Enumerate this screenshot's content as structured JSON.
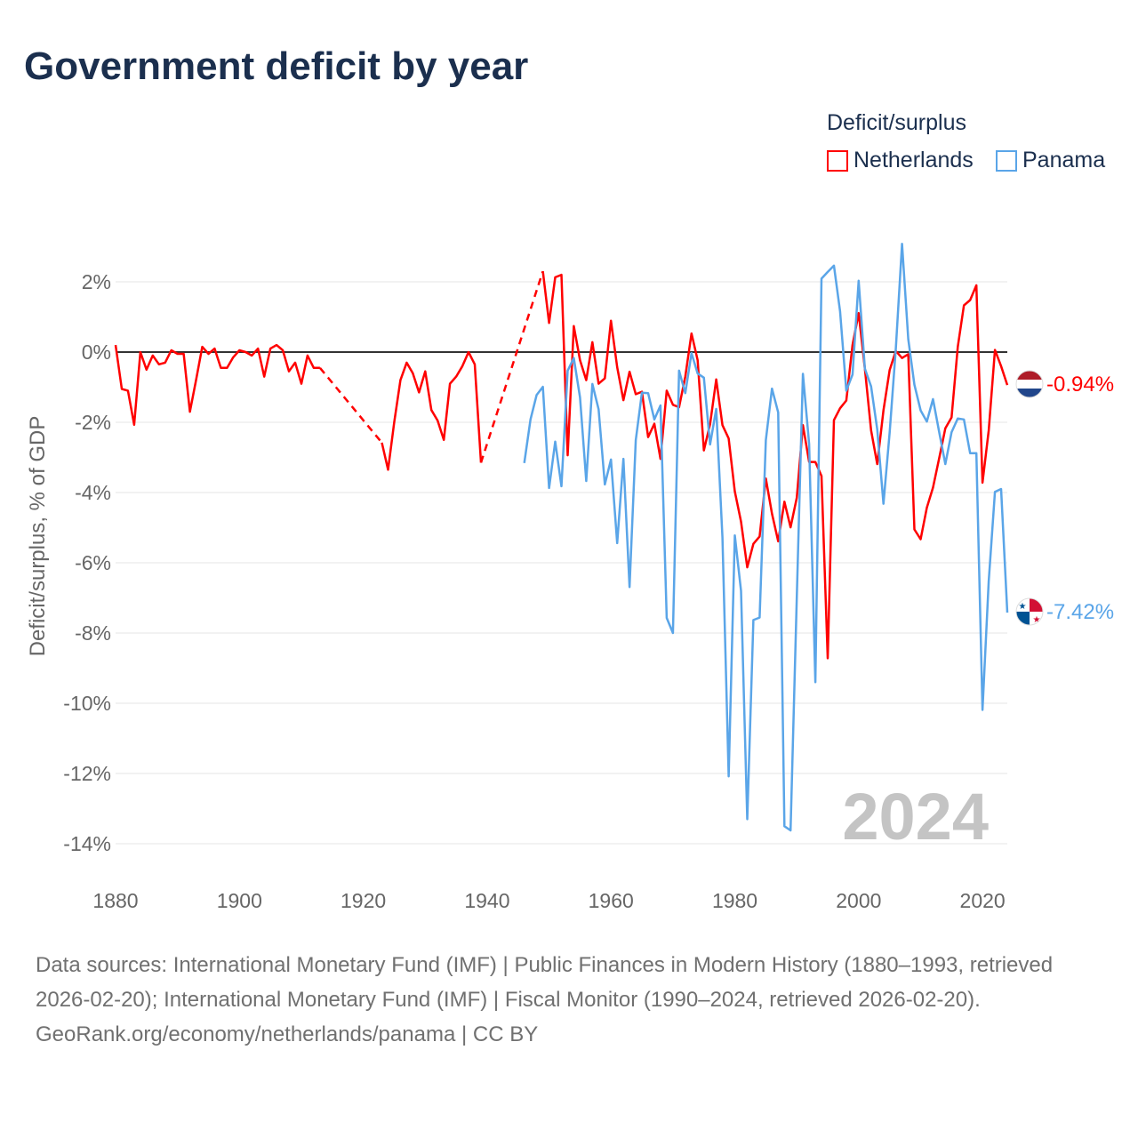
{
  "chart_data": {
    "type": "line",
    "title": "Government deficit by year",
    "xlabel": "",
    "ylabel": "Deficit/surplus, % of GDP",
    "xlim": [
      1880,
      2024
    ],
    "ylim": [
      -14,
      2
    ],
    "x_ticks": [
      "1880",
      "1900",
      "1920",
      "1940",
      "1960",
      "1980",
      "2000",
      "2020"
    ],
    "y_ticks": [
      {
        "v": 2,
        "label": "2%"
      },
      {
        "v": 0,
        "label": "0%"
      },
      {
        "v": -2,
        "label": "-2%"
      },
      {
        "v": -4,
        "label": "-4%"
      },
      {
        "v": -6,
        "label": "-6%"
      },
      {
        "v": -8,
        "label": "-8%"
      },
      {
        "v": -10,
        "label": "-10%"
      },
      {
        "v": -12,
        "label": "-12%"
      },
      {
        "v": -14,
        "label": "-14%"
      }
    ],
    "legend_title": "Deficit/surplus",
    "legend_position": "top-right",
    "year_overlay": "2024",
    "series": [
      {
        "name": "Netherlands",
        "color": "#ff0000",
        "end_label": "-0.94%",
        "start_year": 1880,
        "values": [
          0.2,
          -1.05,
          -1.1,
          -2.07,
          0,
          -0.5,
          -0.1,
          -0.35,
          -0.3,
          0.05,
          -0.05,
          -0.05,
          -1.7,
          -0.8,
          0.15,
          -0.05,
          0.1,
          -0.45,
          -0.45,
          -0.15,
          0.05,
          0,
          -0.1,
          0.1,
          -0.7,
          0.1,
          0.2,
          0.05,
          -0.55,
          -0.3,
          -0.9,
          -0.1,
          -0.45,
          -0.45,
          null,
          null,
          null,
          null,
          null,
          null,
          null,
          null,
          null,
          -2.58,
          -3.35,
          -2.0,
          -0.8,
          -0.3,
          -0.6,
          -1.15,
          -0.55,
          -1.65,
          -1.95,
          -2.5,
          -0.9,
          -0.7,
          -0.4,
          0,
          -0.35,
          -3.15,
          null,
          null,
          null,
          null,
          null,
          null,
          null,
          null,
          null,
          2.3,
          0.83,
          2.13,
          2.2,
          -2.94,
          0.74,
          -0.23,
          -0.8,
          0.28,
          -0.9,
          -0.75,
          0.89,
          -0.43,
          -1.37,
          -0.56,
          -1.2,
          -1.13,
          -2.42,
          -2.04,
          -3.04,
          -1.1,
          -1.5,
          -1.57,
          -0.7,
          0.53,
          -0.23,
          -2.8,
          -2.05,
          -0.78,
          -2.08,
          -2.46,
          -3.97,
          -4.83,
          -6.13,
          -5.46,
          -5.25,
          -3.6,
          -4.6,
          -5.39,
          -4.26,
          -4.99,
          -4.15,
          -2.08,
          -3.13,
          -3.13,
          -3.53,
          -8.72,
          -1.94,
          -1.6,
          -1.38,
          0.2,
          1.11,
          -0.47,
          -2.23,
          -3.19,
          -1.66,
          -0.51,
          0.03,
          -0.17,
          -0.06,
          -5.05,
          -5.33,
          -4.43,
          -3.86,
          -3.02,
          -2.17,
          -1.86,
          0.15,
          1.33,
          1.48,
          1.9,
          -3.72,
          -2.23,
          0.06,
          -0.4,
          -0.94
        ]
      },
      {
        "name": "Panama",
        "color": "#5aa5e8",
        "end_label": "-7.42%",
        "start_year": 1946,
        "values": [
          -3.16,
          -1.92,
          -1.22,
          -0.99,
          -3.87,
          -2.55,
          -3.82,
          -0.53,
          -0.17,
          -1.29,
          -3.67,
          -0.91,
          -1.63,
          -3.77,
          -3.06,
          -5.44,
          -3.04,
          -6.69,
          -2.51,
          -1.16,
          -1.17,
          -1.92,
          -1.52,
          -7.57,
          -8.0,
          -0.53,
          -1.17,
          -0.03,
          -0.61,
          -0.73,
          -2.63,
          -1.62,
          -5.28,
          -12.08,
          -5.22,
          -6.8,
          -13.3,
          -7.63,
          -7.56,
          -2.51,
          -1.04,
          -1.72,
          -13.5,
          -13.62,
          -7.0,
          -0.62,
          -2.62,
          -9.4,
          2.09,
          2.28,
          2.46,
          1.16,
          -1.1,
          -0.64,
          2.03,
          -0.47,
          -0.98,
          -2.2,
          -4.32,
          -2.28,
          0.1,
          3.08,
          0.37,
          -0.93,
          -1.66,
          -1.98,
          -1.34,
          -2.28,
          -3.19,
          -2.28,
          -1.89,
          -1.92,
          -2.88,
          -2.88,
          -10.19,
          -6.52,
          -3.98,
          -3.9,
          -7.42
        ]
      }
    ]
  },
  "footer": {
    "sources": "Data sources: International Monetary Fund (IMF) | Public Finances in Modern History (1880–1993, retrieved 2026-02-20); International Monetary Fund (IMF) | Fiscal Monitor (1990–2024, retrieved 2026-02-20).",
    "credit": "GeoRank.org/economy/netherlands/panama | CC BY"
  }
}
